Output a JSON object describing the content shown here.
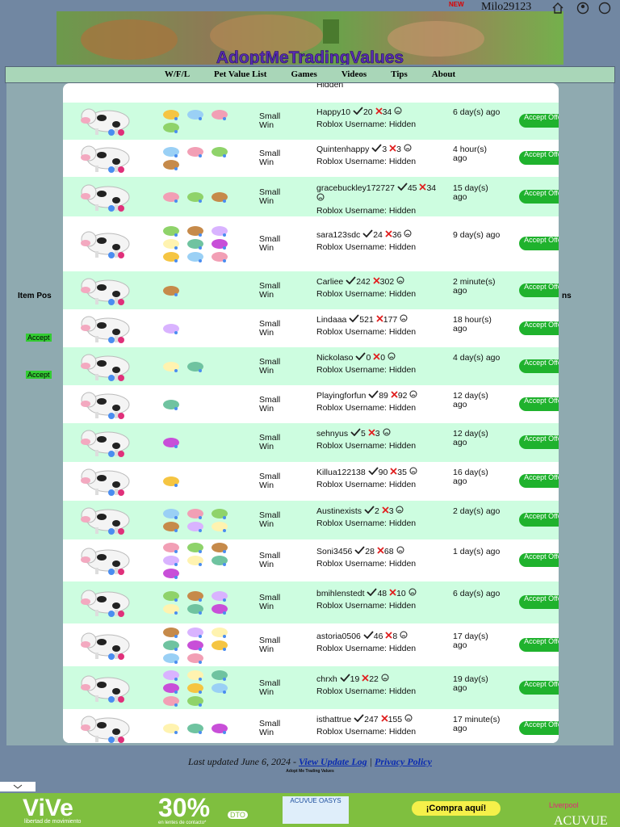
{
  "header": {
    "site_title": "AdoptMeTradingValues",
    "badge": "NEW",
    "username": "Milo29123"
  },
  "nav": [
    "W/F/L",
    "Pet Value List",
    "Games",
    "Videos",
    "Tips",
    "About"
  ],
  "background": {
    "col_header_left": "Item Pos",
    "col_header_right": "ns",
    "accept_left": [
      "Accept",
      "Accept"
    ]
  },
  "modal": {
    "top_partial": "Hidden",
    "rows": [
      {
        "result": "Small Win",
        "user": "Happy10",
        "wins": 20,
        "losses": 34,
        "roblox": "Roblox Username: Hidden",
        "time": "6 day(s) ago",
        "button": "Accept Offer"
      },
      {
        "result": "Small Win",
        "user": "Quintenhappy",
        "wins": 3,
        "losses": 3,
        "roblox": "Roblox Username: Hidden",
        "time": "4 hour(s) ago",
        "button": "Accept Offer"
      },
      {
        "result": "Small Win",
        "user": "gracebuckley172727",
        "wins": 45,
        "losses": 34,
        "roblox": "Roblox Username: Hidden",
        "time": "15 day(s) ago",
        "button": "Accept Offer"
      },
      {
        "result": "Small Win",
        "user": "sara123sdc",
        "wins": 24,
        "losses": 36,
        "roblox": "Roblox Username: Hidden",
        "time": "9 day(s) ago",
        "button": "Accept Offer"
      },
      {
        "result": "Small Win",
        "user": "Carliee",
        "wins": 242,
        "losses": 302,
        "roblox": "Roblox Username: Hidden",
        "time": "2 minute(s) ago",
        "button": "Accept Offer"
      },
      {
        "result": "Small Win",
        "user": "Lindaaa",
        "wins": 521,
        "losses": 177,
        "roblox": "Roblox Username: Hidden",
        "time": "18 hour(s) ago",
        "button": "Accept Offer"
      },
      {
        "result": "Small Win",
        "user": "Nickolaso",
        "wins": 0,
        "losses": 0,
        "roblox": "Roblox Username: Hidden",
        "time": "4 day(s) ago",
        "button": "Accept Offer"
      },
      {
        "result": "Small Win",
        "user": "Playingforfun",
        "wins": 89,
        "losses": 92,
        "roblox": "Roblox Username: Hidden",
        "time": "12 day(s) ago",
        "button": "Accept Offer"
      },
      {
        "result": "Small Win",
        "user": "sehnyus",
        "wins": 5,
        "losses": 3,
        "roblox": "Roblox Username: Hidden",
        "time": "12 day(s) ago",
        "button": "Accept Offer"
      },
      {
        "result": "Small Win",
        "user": "Killua122138",
        "wins": 90,
        "losses": 35,
        "roblox": "Roblox Username: Hidden",
        "time": "16 day(s) ago",
        "button": "Accept Offer"
      },
      {
        "result": "Small Win",
        "user": "Austinexists",
        "wins": 2,
        "losses": 3,
        "roblox": "Roblox Username: Hidden",
        "time": "2 day(s) ago",
        "button": "Accept Offer"
      },
      {
        "result": "Small Win",
        "user": "Soni3456",
        "wins": 28,
        "losses": 68,
        "roblox": "Roblox Username: Hidden",
        "time": "1 day(s) ago",
        "button": "Accept Offer"
      },
      {
        "result": "Small Win",
        "user": "bmihlenstedt",
        "wins": 48,
        "losses": 10,
        "roblox": "Roblox Username: Hidden",
        "time": "6 day(s) ago",
        "button": "Accept Offer"
      },
      {
        "result": "Small Win",
        "user": "astoria0506",
        "wins": 46,
        "losses": 8,
        "roblox": "Roblox Username: Hidden",
        "time": "17 day(s) ago",
        "button": "Accept Offer"
      },
      {
        "result": "Small Win",
        "user": "chrxh",
        "wins": 19,
        "losses": 22,
        "roblox": "Roblox Username: Hidden",
        "time": "19 day(s) ago",
        "button": "Accept Offer"
      },
      {
        "result": "Small Win",
        "user": "isthattrue",
        "wins": 247,
        "losses": 155,
        "roblox": "Roblox Username: Hidden",
        "time": "17 minute(s) ago",
        "button": "Accept Offer"
      }
    ]
  },
  "footer": {
    "prefix": "Last updated June 6, 2024 - ",
    "update_log": "View Update Log",
    "separator": "|",
    "privacy": "Privacy Policy",
    "small": "Adopt Me Trading Values"
  },
  "ad": {
    "brand": "ViVe",
    "tagline": "libertad de movimiento",
    "discount": "30%",
    "dto": "DTO",
    "offer_line": "en lentes de contacto*",
    "product": "ACUVUE OASYS",
    "cta": "¡Compra aquí!",
    "store": "Liverpool",
    "logo": "ACUVUE"
  }
}
